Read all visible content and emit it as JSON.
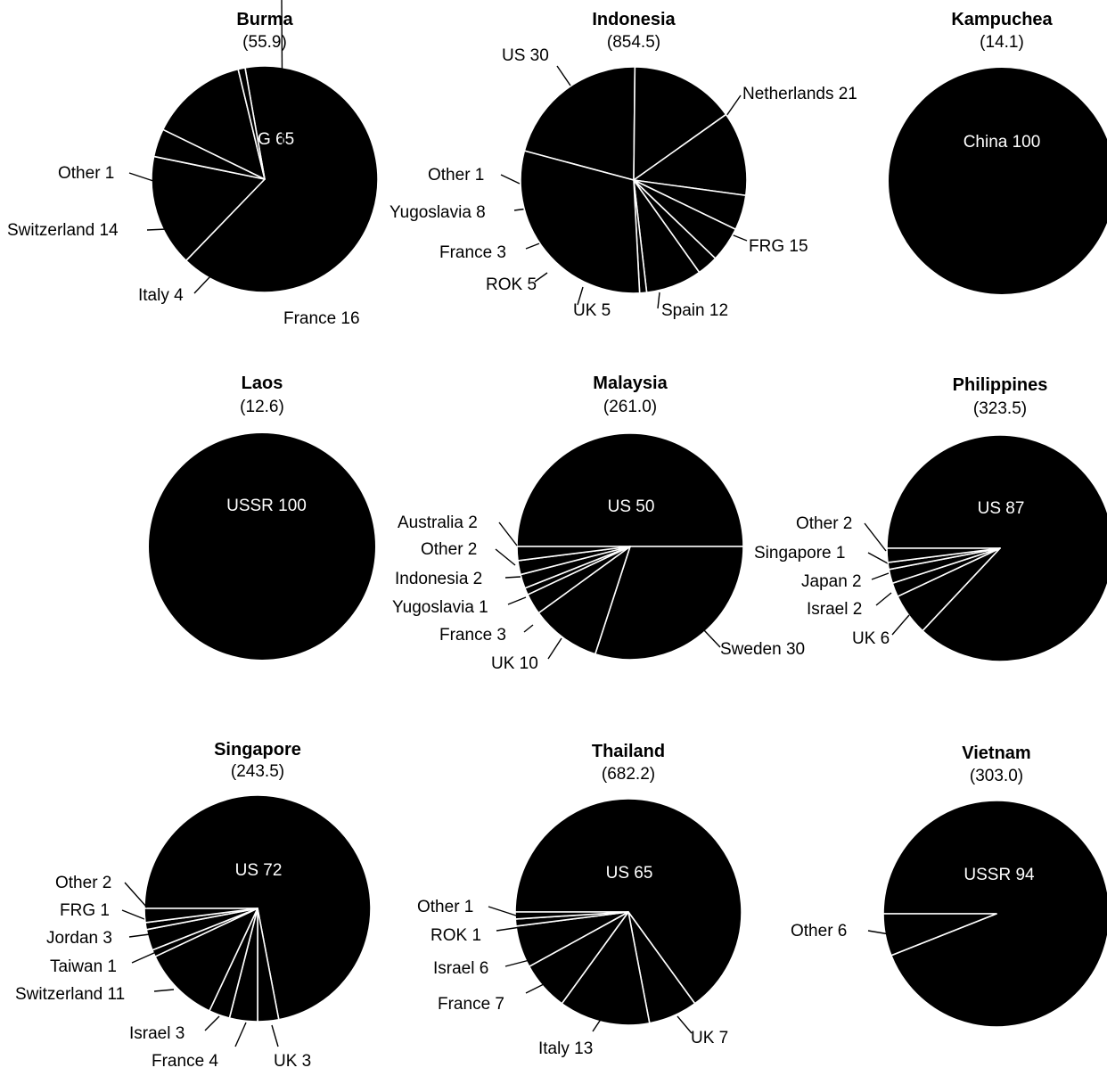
{
  "chart_data": [
    {
      "type": "pie",
      "title": "Burma",
      "total": "(55.9)",
      "slices": [
        {
          "name": "FRG",
          "value": 65,
          "label": "FRG 65"
        },
        {
          "name": "France",
          "value": 16,
          "label": "France 16"
        },
        {
          "name": "Italy",
          "value": 4,
          "label": "Italy 4"
        },
        {
          "name": "Switzerland",
          "value": 14,
          "label": "Switzerland 14"
        },
        {
          "name": "Other",
          "value": 1,
          "label": "Other 1"
        }
      ]
    },
    {
      "type": "pie",
      "title": "Indonesia",
      "total": "(854.5)",
      "slices": [
        {
          "name": "Netherlands",
          "value": 21,
          "label": "Netherlands 21"
        },
        {
          "name": "FRG",
          "value": 15,
          "label": "FRG 15"
        },
        {
          "name": "Spain",
          "value": 12,
          "label": "Spain 12"
        },
        {
          "name": "UK",
          "value": 5,
          "label": "UK 5"
        },
        {
          "name": "ROK",
          "value": 5,
          "label": "ROK 5"
        },
        {
          "name": "France",
          "value": 3,
          "label": "France 3"
        },
        {
          "name": "Yugoslavia",
          "value": 8,
          "label": "Yugoslavia 8"
        },
        {
          "name": "Other",
          "value": 1,
          "label": "Other 1"
        },
        {
          "name": "US",
          "value": 30,
          "label": "US 30"
        }
      ]
    },
    {
      "type": "pie",
      "title": "Kampuchea",
      "total": "(14.1)",
      "slices": [
        {
          "name": "China",
          "value": 100,
          "label": "China 100"
        }
      ]
    },
    {
      "type": "pie",
      "title": "Laos",
      "total": "(12.6)",
      "slices": [
        {
          "name": "USSR",
          "value": 100,
          "label": "USSR 100"
        }
      ]
    },
    {
      "type": "pie",
      "title": "Malaysia",
      "total": "(261.0)",
      "slices": [
        {
          "name": "US",
          "value": 50,
          "label": "US 50"
        },
        {
          "name": "Sweden",
          "value": 30,
          "label": "Sweden 30"
        },
        {
          "name": "UK",
          "value": 10,
          "label": "UK 10"
        },
        {
          "name": "France",
          "value": 3,
          "label": "France 3"
        },
        {
          "name": "Yugoslavia",
          "value": 1,
          "label": "Yugoslavia 1"
        },
        {
          "name": "Indonesia",
          "value": 2,
          "label": "Indonesia 2"
        },
        {
          "name": "Other",
          "value": 2,
          "label": "Other 2"
        },
        {
          "name": "Australia",
          "value": 2,
          "label": "Australia 2"
        }
      ]
    },
    {
      "type": "pie",
      "title": "Philippines",
      "total": "(323.5)",
      "slices": [
        {
          "name": "US",
          "value": 87,
          "label": "US 87"
        },
        {
          "name": "UK",
          "value": 6,
          "label": "UK 6"
        },
        {
          "name": "Israel",
          "value": 2,
          "label": "Israel 2"
        },
        {
          "name": "Japan",
          "value": 2,
          "label": "Japan 2"
        },
        {
          "name": "Singapore",
          "value": 1,
          "label": "Singapore 1"
        },
        {
          "name": "Other",
          "value": 2,
          "label": "Other 2"
        }
      ]
    },
    {
      "type": "pie",
      "title": "Singapore",
      "total": "(243.5)",
      "slices": [
        {
          "name": "US",
          "value": 72,
          "label": "US 72"
        },
        {
          "name": "UK",
          "value": 3,
          "label": "UK 3"
        },
        {
          "name": "France",
          "value": 4,
          "label": "France 4"
        },
        {
          "name": "Israel",
          "value": 3,
          "label": "Israel  3"
        },
        {
          "name": "Switzerland",
          "value": 11,
          "label": "Switzerland 11"
        },
        {
          "name": "Taiwan",
          "value": 1,
          "label": "Taiwan 1"
        },
        {
          "name": "Jordan",
          "value": 3,
          "label": "Jordan 3"
        },
        {
          "name": "FRG",
          "value": 1,
          "label": "FRG 1"
        },
        {
          "name": "Other",
          "value": 2,
          "label": "Other 2"
        }
      ]
    },
    {
      "type": "pie",
      "title": "Thailand",
      "total": "(682.2)",
      "slices": [
        {
          "name": "US",
          "value": 65,
          "label": "US 65"
        },
        {
          "name": "UK",
          "value": 7,
          "label": "UK 7"
        },
        {
          "name": "Italy",
          "value": 13,
          "label": "Italy 13"
        },
        {
          "name": "France",
          "value": 7,
          "label": "France 7"
        },
        {
          "name": "Israel",
          "value": 6,
          "label": "Israel 6"
        },
        {
          "name": "ROK",
          "value": 1,
          "label": "ROK 1"
        },
        {
          "name": "Other",
          "value": 1,
          "label": "Other 1"
        }
      ]
    },
    {
      "type": "pie",
      "title": "Vietnam",
      "total": "(303.0)",
      "slices": [
        {
          "name": "USSR",
          "value": 94,
          "label": "USSR 94"
        },
        {
          "name": "Other",
          "value": 6,
          "label": "Other 6"
        }
      ]
    }
  ]
}
